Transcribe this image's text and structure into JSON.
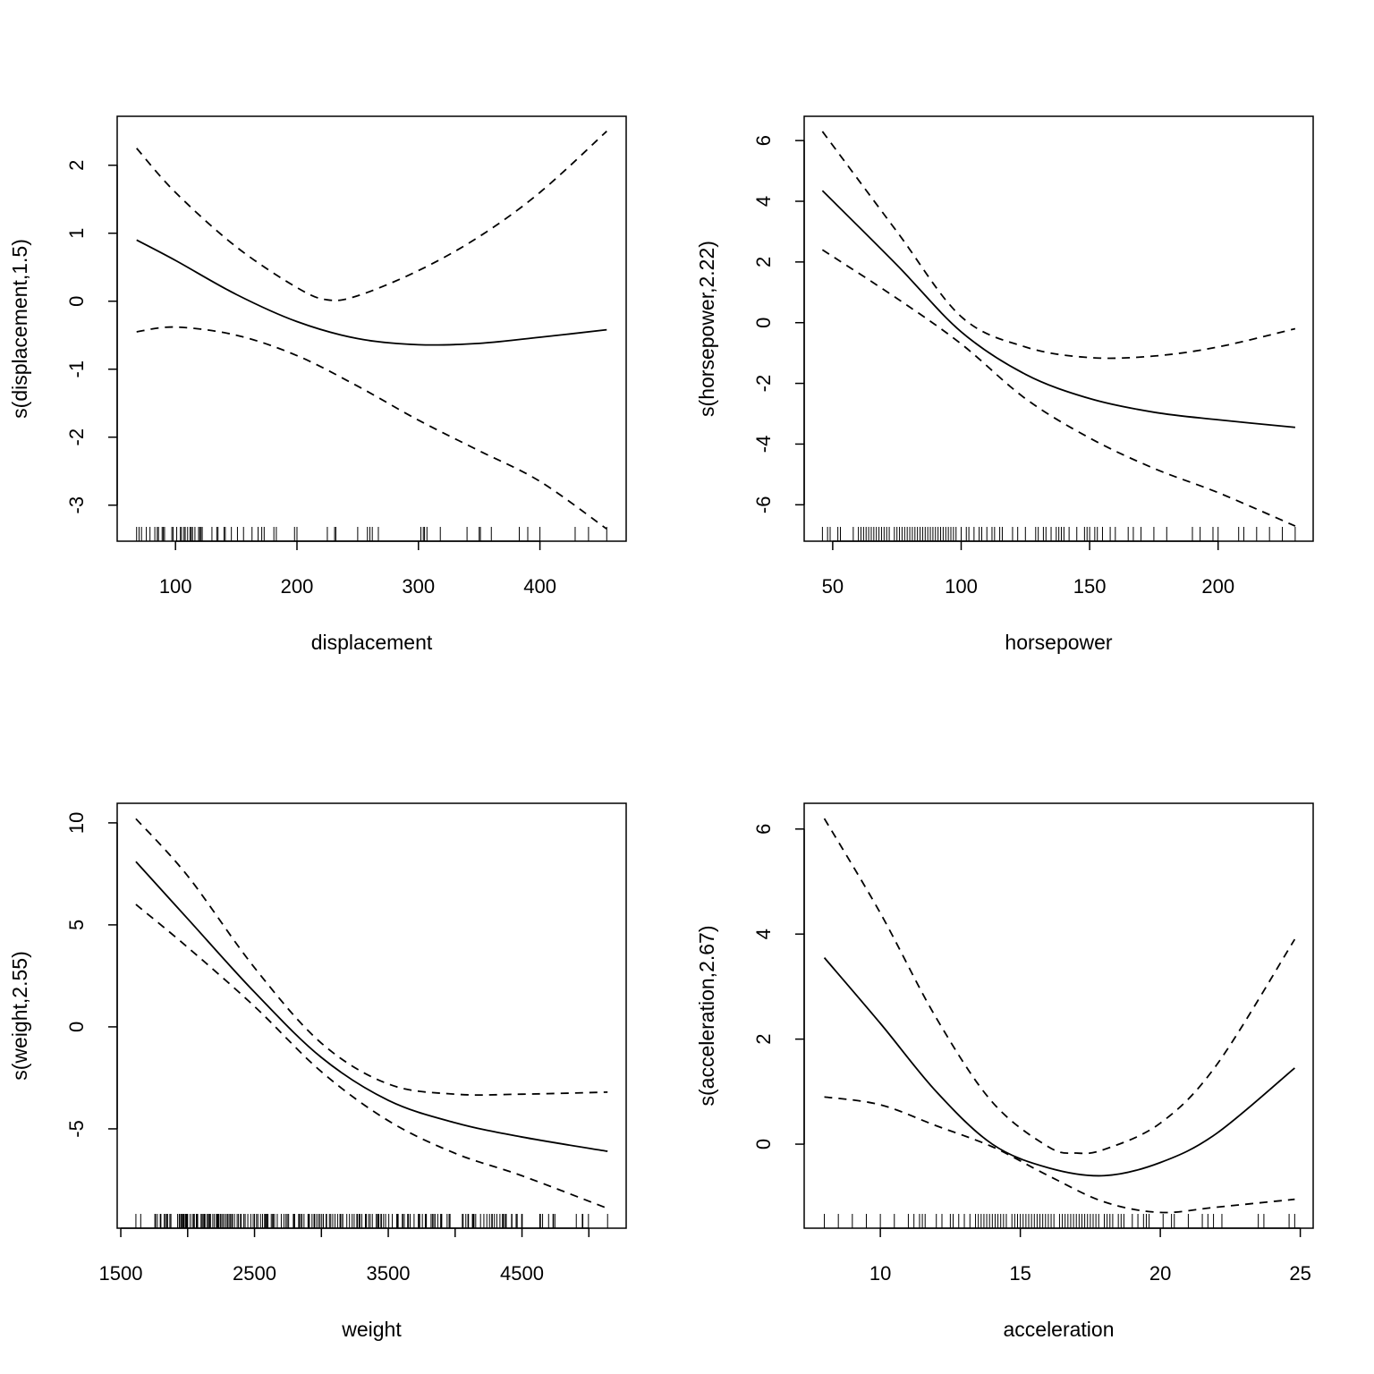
{
  "chart_data": [
    {
      "type": "line",
      "xlabel": "displacement",
      "ylabel": "s(displacement,1.5)",
      "xlim": [
        52,
        471
      ],
      "ylim": [
        -3.53,
        2.72
      ],
      "x_ticks": [
        100,
        200,
        300,
        400
      ],
      "x_tick_labels": [
        "100",
        "200",
        "300",
        "400"
      ],
      "y_ticks": [
        -3,
        -2,
        -1,
        0,
        1,
        2
      ],
      "y_tick_labels": [
        "-3",
        "-2",
        "-1",
        "0",
        "1",
        "2"
      ],
      "series": [
        {
          "style": "solid",
          "x": [
            68,
            100,
            150,
            200,
            250,
            300,
            350,
            400,
            455
          ],
          "y": [
            0.9,
            0.6,
            0.1,
            -0.3,
            -0.55,
            -0.64,
            -0.62,
            -0.53,
            -0.42
          ]
        },
        {
          "style": "dashed",
          "x": [
            68,
            100,
            150,
            200,
            225,
            250,
            300,
            350,
            400,
            455
          ],
          "y": [
            2.25,
            1.6,
            0.8,
            0.2,
            0.02,
            0.08,
            0.45,
            0.95,
            1.6,
            2.5
          ]
        },
        {
          "style": "dashed",
          "x": [
            68,
            100,
            150,
            200,
            250,
            300,
            350,
            400,
            455
          ],
          "y": [
            -0.45,
            -0.38,
            -0.5,
            -0.8,
            -1.25,
            -1.75,
            -2.2,
            -2.65,
            -3.35
          ]
        }
      ],
      "rug": [
        68,
        70,
        72,
        76,
        79,
        83,
        85,
        86,
        89,
        90,
        91,
        97,
        98,
        101,
        104,
        105,
        107,
        108,
        110,
        112,
        113,
        114,
        116,
        119,
        120,
        121,
        122,
        130,
        134,
        135,
        140,
        141,
        146,
        151,
        156,
        163,
        168,
        171,
        173,
        181,
        183,
        198,
        200,
        225,
        231,
        232,
        250,
        258,
        260,
        262,
        267,
        302,
        304,
        305,
        307,
        318,
        340,
        350,
        351,
        360,
        383,
        390,
        400,
        429,
        440,
        455
      ]
    },
    {
      "type": "line",
      "xlabel": "horsepower",
      "ylabel": "s(horsepower,2.22)",
      "xlim": [
        38.9,
        237
      ],
      "ylim": [
        -7.2,
        6.8
      ],
      "x_ticks": [
        50,
        100,
        150,
        200
      ],
      "x_tick_labels": [
        "50",
        "100",
        "150",
        "200"
      ],
      "y_ticks": [
        -6,
        -4,
        -2,
        0,
        2,
        4,
        6
      ],
      "y_tick_labels": [
        "-6",
        "-4",
        "-2",
        "0",
        "2",
        "4",
        "6"
      ],
      "series": [
        {
          "style": "solid",
          "x": [
            46,
            75,
            100,
            125,
            150,
            175,
            200,
            230
          ],
          "y": [
            4.35,
            1.9,
            -0.3,
            -1.7,
            -2.5,
            -2.95,
            -3.2,
            -3.45
          ]
        },
        {
          "style": "dashed",
          "x": [
            46,
            75,
            100,
            125,
            150,
            175,
            200,
            230
          ],
          "y": [
            6.3,
            3.0,
            0.2,
            -0.8,
            -1.15,
            -1.1,
            -0.8,
            -0.2
          ]
        },
        {
          "style": "dashed",
          "x": [
            46,
            75,
            100,
            125,
            150,
            175,
            200,
            230
          ],
          "y": [
            2.4,
            0.8,
            -0.7,
            -2.5,
            -3.8,
            -4.8,
            -5.6,
            -6.7
          ]
        }
      ],
      "rug": [
        46,
        48,
        49,
        52,
        53,
        58,
        60,
        61,
        62,
        63,
        64,
        65,
        66,
        67,
        68,
        69,
        70,
        71,
        72,
        74,
        75,
        76,
        77,
        78,
        79,
        80,
        81,
        82,
        83,
        84,
        85,
        86,
        87,
        88,
        89,
        90,
        91,
        92,
        93,
        94,
        95,
        96,
        97,
        98,
        100,
        102,
        103,
        105,
        107,
        108,
        110,
        112,
        113,
        115,
        116,
        120,
        122,
        125,
        129,
        130,
        132,
        133,
        135,
        137,
        138,
        139,
        140,
        142,
        145,
        148,
        149,
        150,
        152,
        153,
        155,
        158,
        160,
        165,
        167,
        170,
        175,
        180,
        190,
        193,
        198,
        200,
        208,
        210,
        215,
        220,
        225,
        230
      ]
    },
    {
      "type": "line",
      "xlabel": "weight",
      "ylabel": "s(weight,2.55)",
      "xlim": [
        1473,
        5279
      ],
      "ylim": [
        -9.87,
        10.96
      ],
      "x_ticks": [
        1500,
        2000,
        2500,
        3000,
        3500,
        4000,
        4500,
        5000
      ],
      "x_tick_labels": [
        "1500",
        "",
        "2500",
        "",
        "3500",
        "",
        "4500",
        ""
      ],
      "y_ticks": [
        -5,
        0,
        5,
        10
      ],
      "y_tick_labels": [
        "-5",
        "0",
        "5",
        "10"
      ],
      "series": [
        {
          "style": "solid",
          "x": [
            1613,
            2000,
            2500,
            3000,
            3500,
            4000,
            4500,
            5140
          ],
          "y": [
            8.1,
            5.3,
            1.7,
            -1.5,
            -3.6,
            -4.7,
            -5.4,
            -6.1
          ]
        },
        {
          "style": "dashed",
          "x": [
            1613,
            2000,
            2500,
            3000,
            3500,
            4000,
            4500,
            5140
          ],
          "y": [
            10.2,
            7.4,
            2.9,
            -0.8,
            -2.8,
            -3.3,
            -3.3,
            -3.2
          ]
        },
        {
          "style": "dashed",
          "x": [
            1613,
            2000,
            2500,
            3000,
            3500,
            4000,
            4500,
            5140
          ],
          "y": [
            6.0,
            3.9,
            1.0,
            -2.2,
            -4.6,
            -6.2,
            -7.3,
            -8.9
          ]
        }
      ],
      "rug": [
        1613,
        1649,
        1755,
        1760,
        1773,
        1795,
        1800,
        1825,
        1834,
        1835,
        1845,
        1850,
        1867,
        1875,
        1925,
        1937,
        1940,
        1950,
        1955,
        1963,
        1965,
        1968,
        1975,
        1985,
        1990,
        1995,
        2000,
        2019,
        2035,
        2045,
        2050,
        2065,
        2070,
        2075,
        2100,
        2108,
        2110,
        2120,
        2125,
        2130,
        2145,
        2155,
        2160,
        2164,
        2171,
        2188,
        2200,
        2215,
        2220,
        2226,
        2228,
        2234,
        2245,
        2255,
        2265,
        2278,
        2290,
        2300,
        2310,
        2320,
        2330,
        2335,
        2350,
        2370,
        2380,
        2395,
        2400,
        2420,
        2430,
        2450,
        2472,
        2490,
        2500,
        2515,
        2525,
        2545,
        2560,
        2575,
        2582,
        2587,
        2595,
        2600,
        2625,
        2635,
        2640,
        2650,
        2670,
        2700,
        2720,
        2735,
        2745,
        2755,
        2790,
        2795,
        2800,
        2830,
        2835,
        2845,
        2855,
        2870,
        2900,
        2905,
        2910,
        2930,
        2945,
        2950,
        2965,
        2979,
        2990,
        3003,
        3015,
        3035,
        3039,
        3060,
        3070,
        3085,
        3102,
        3121,
        3139,
        3145,
        3158,
        3160,
        3190,
        3210,
        3230,
        3245,
        3265,
        3270,
        3282,
        3288,
        3302,
        3329,
        3336,
        3353,
        3365,
        3381,
        3410,
        3420,
        3425,
        3430,
        3445,
        3449,
        3465,
        3480,
        3504,
        3530,
        3563,
        3570,
        3574,
        3605,
        3609,
        3620,
        3645,
        3651,
        3664,
        3693,
        3725,
        3730,
        3735,
        3755,
        3777,
        3781,
        3785,
        3820,
        3830,
        3840,
        3850,
        3870,
        3892,
        3897,
        3900,
        3940,
        3955,
        3962,
        4054,
        4060,
        4080,
        4096,
        4098,
        4100,
        4129,
        4135,
        4140,
        4141,
        4154,
        4190,
        4215,
        4237,
        4257,
        4274,
        4278,
        4294,
        4312,
        4335,
        4354,
        4360,
        4363,
        4376,
        4380,
        4382,
        4425,
        4422,
        4456,
        4457,
        4464,
        4498,
        4499,
        4502,
        4633,
        4638,
        4654,
        4699,
        4732,
        4735,
        4746,
        4906,
        4951,
        4955,
        4997,
        5140
      ]
    },
    {
      "type": "line",
      "xlabel": "acceleration",
      "ylabel": "s(acceleration,2.67)",
      "xlim": [
        7.28,
        25.46
      ],
      "ylim": [
        -1.6,
        6.49
      ],
      "x_ticks": [
        10,
        15,
        20,
        25
      ],
      "x_tick_labels": [
        "10",
        "15",
        "20",
        "25"
      ],
      "y_ticks": [
        0,
        2,
        4,
        6
      ],
      "y_tick_labels": [
        "0",
        "2",
        "4",
        "6"
      ],
      "series": [
        {
          "style": "solid",
          "x": [
            8,
            10,
            12,
            14,
            16,
            18,
            20,
            22,
            24.8
          ],
          "y": [
            3.55,
            2.3,
            1.0,
            0.0,
            -0.45,
            -0.6,
            -0.35,
            0.2,
            1.45
          ]
        },
        {
          "style": "dashed",
          "x": [
            8,
            10,
            12,
            14,
            16,
            17,
            18,
            20,
            22,
            24.8
          ],
          "y": [
            6.2,
            4.4,
            2.4,
            0.8,
            -0.05,
            -0.17,
            -0.1,
            0.4,
            1.5,
            3.9
          ]
        },
        {
          "style": "dashed",
          "x": [
            8,
            10,
            12,
            14,
            16,
            18,
            20,
            22,
            24.8
          ],
          "y": [
            0.9,
            0.75,
            0.35,
            -0.05,
            -0.6,
            -1.1,
            -1.3,
            -1.2,
            -1.05
          ]
        }
      ],
      "rug": [
        8,
        8.5,
        9,
        9.5,
        10,
        10.5,
        11,
        11.2,
        11.4,
        11.5,
        11.6,
        12,
        12.2,
        12.5,
        12.6,
        12.8,
        13,
        13.2,
        13.4,
        13.5,
        13.6,
        13.7,
        13.8,
        13.9,
        14,
        14.1,
        14.2,
        14.3,
        14.4,
        14.5,
        14.7,
        14.8,
        14.9,
        15,
        15.1,
        15.2,
        15.3,
        15.4,
        15.5,
        15.6,
        15.7,
        15.8,
        15.9,
        16,
        16.1,
        16.2,
        16.4,
        16.5,
        16.6,
        16.7,
        16.8,
        16.9,
        17,
        17.1,
        17.2,
        17.3,
        17.4,
        17.5,
        17.6,
        17.7,
        17.8,
        18,
        18.1,
        18.2,
        18.3,
        18.5,
        18.6,
        18.7,
        19,
        19.2,
        19.4,
        19.5,
        19.6,
        20.1,
        20.4,
        20.5,
        21,
        21.5,
        21.7,
        21.9,
        22.2,
        23.5,
        23.7,
        24.6,
        24.8
      ]
    }
  ]
}
